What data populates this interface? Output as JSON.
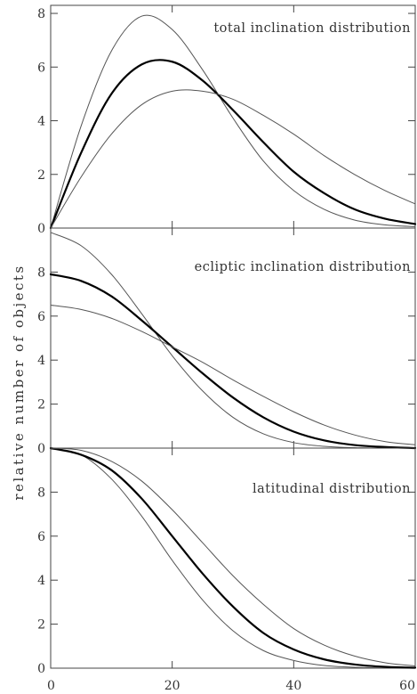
{
  "figure": {
    "ylabel": "relative number of objects"
  },
  "chart_data": [
    {
      "type": "line",
      "title": "total inclination distribution",
      "xlim": [
        0,
        60
      ],
      "ylim": [
        0,
        8.3
      ],
      "yticks": [
        0,
        2,
        4,
        6,
        8
      ],
      "xticks": [
        0,
        20,
        40,
        60
      ],
      "x": [
        0,
        5,
        10,
        15,
        20,
        25,
        30,
        35,
        40,
        45,
        50,
        55,
        60
      ],
      "series": [
        {
          "values": [
            0,
            3.8,
            6.6,
            7.9,
            7.4,
            5.9,
            4.1,
            2.5,
            1.4,
            0.7,
            0.3,
            0.12,
            0.05
          ],
          "color": "#555555",
          "width": 1
        },
        {
          "values": [
            0,
            2.8,
            5.0,
            6.1,
            6.2,
            5.5,
            4.4,
            3.2,
            2.1,
            1.3,
            0.7,
            0.35,
            0.15
          ],
          "color": "#000000",
          "width": 2.2
        },
        {
          "values": [
            0,
            1.9,
            3.5,
            4.6,
            5.1,
            5.1,
            4.8,
            4.2,
            3.5,
            2.7,
            2.0,
            1.4,
            0.9
          ],
          "color": "#555555",
          "width": 1
        }
      ]
    },
    {
      "type": "line",
      "title": "ecliptic inclination distribution",
      "xlim": [
        0,
        60
      ],
      "ylim": [
        0,
        10
      ],
      "yticks": [
        0,
        2,
        4,
        6,
        8
      ],
      "xticks": [
        0,
        20,
        40,
        60
      ],
      "x": [
        0,
        5,
        10,
        15,
        20,
        25,
        30,
        35,
        40,
        45,
        50,
        55,
        60
      ],
      "series": [
        {
          "values": [
            9.8,
            9.2,
            7.9,
            6.1,
            4.2,
            2.6,
            1.4,
            0.65,
            0.25,
            0.08,
            0.02,
            0.0,
            0.0
          ],
          "color": "#555555",
          "width": 1
        },
        {
          "values": [
            7.9,
            7.6,
            6.9,
            5.8,
            4.6,
            3.4,
            2.3,
            1.4,
            0.75,
            0.35,
            0.14,
            0.05,
            0.0
          ],
          "color": "#000000",
          "width": 2.2
        },
        {
          "values": [
            6.5,
            6.3,
            5.9,
            5.3,
            4.6,
            3.9,
            3.1,
            2.35,
            1.65,
            1.05,
            0.6,
            0.3,
            0.15
          ],
          "color": "#555555",
          "width": 1
        }
      ]
    },
    {
      "type": "line",
      "title": "latitudinal distribution",
      "xlim": [
        0,
        60
      ],
      "ylim": [
        0,
        10
      ],
      "yticks": [
        0,
        2,
        4,
        6,
        8
      ],
      "xticks": [
        0,
        20,
        40,
        60
      ],
      "x": [
        0,
        5,
        10,
        15,
        20,
        25,
        30,
        35,
        40,
        45,
        50,
        55,
        60
      ],
      "series": [
        {
          "values": [
            10,
            9.7,
            8.6,
            6.9,
            4.9,
            3.1,
            1.7,
            0.8,
            0.35,
            0.12,
            0.04,
            0.01,
            0.0
          ],
          "color": "#555555",
          "width": 1
        },
        {
          "values": [
            10,
            9.7,
            9.0,
            7.7,
            6.0,
            4.3,
            2.8,
            1.6,
            0.85,
            0.4,
            0.17,
            0.06,
            0.02
          ],
          "color": "#000000",
          "width": 2.2
        },
        {
          "values": [
            10,
            9.9,
            9.4,
            8.5,
            7.2,
            5.7,
            4.2,
            2.9,
            1.8,
            1.05,
            0.55,
            0.25,
            0.1
          ],
          "color": "#555555",
          "width": 1
        }
      ]
    }
  ]
}
